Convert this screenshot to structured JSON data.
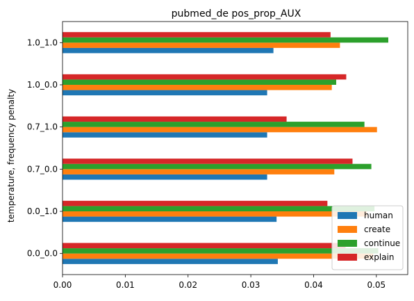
{
  "chart_data": {
    "type": "bar",
    "orientation": "horizontal",
    "title": "pubmed_de pos_prop_AUX",
    "xlabel": "",
    "ylabel": "temperature, frequency penalty",
    "categories": [
      "0.0_0.0",
      "0.0_1.0",
      "0.7_0.0",
      "0.7_1.0",
      "1.0_0.0",
      "1.0_1.0"
    ],
    "series": [
      {
        "name": "human",
        "color": "#1f77b4",
        "values": [
          0.0343,
          0.0341,
          0.0326,
          0.0326,
          0.0326,
          0.0336
        ]
      },
      {
        "name": "create",
        "color": "#ff7f0e",
        "values": [
          0.0495,
          0.0485,
          0.0433,
          0.0501,
          0.0429,
          0.0442
        ]
      },
      {
        "name": "continue",
        "color": "#2ca02c",
        "values": [
          0.0503,
          0.0497,
          0.0492,
          0.0481,
          0.0436,
          0.0519
        ]
      },
      {
        "name": "explain",
        "color": "#d62728",
        "values": [
          0.0451,
          0.0422,
          0.0462,
          0.0357,
          0.0452,
          0.0427
        ]
      }
    ],
    "xlim": [
      0,
      0.055
    ],
    "xticks": [
      "0.00",
      "0.01",
      "0.02",
      "0.03",
      "0.04",
      "0.05"
    ],
    "xtick_values": [
      0,
      0.01,
      0.02,
      0.03,
      0.04,
      0.05
    ],
    "grid": false,
    "legend_position": "lower-right"
  }
}
